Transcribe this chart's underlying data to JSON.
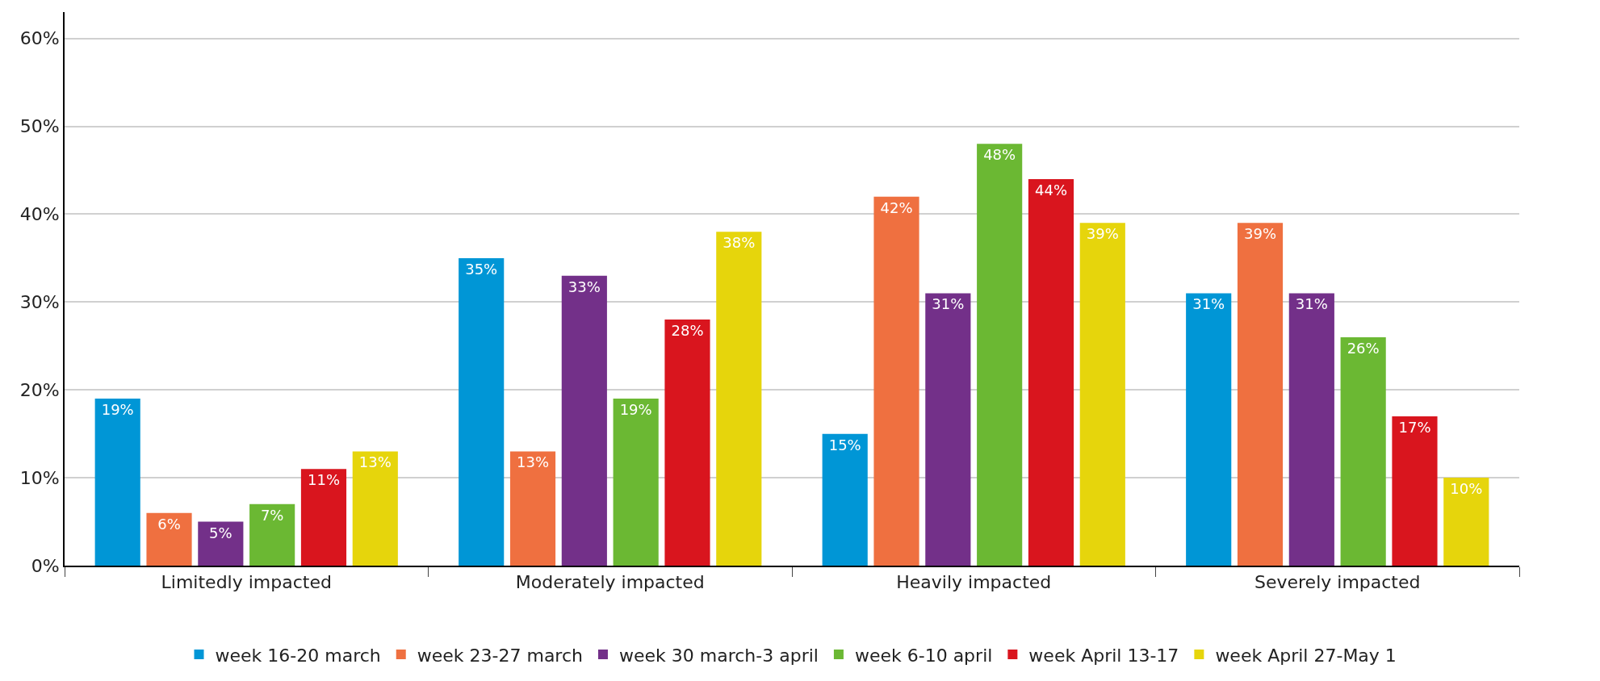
{
  "chart_data": {
    "type": "bar",
    "categories": [
      "Limitedly impacted",
      "Moderately impacted",
      "Heavily impacted",
      "Severely impacted"
    ],
    "series": [
      {
        "name": "week 16-20 march",
        "color": "#0096d6",
        "values": [
          19,
          35,
          15,
          31
        ],
        "value_labels": [
          "19%",
          "35%",
          "15%",
          "31%"
        ]
      },
      {
        "name": "week 23-27 march",
        "color": "#ef7040",
        "values": [
          6,
          13,
          42,
          39
        ],
        "value_labels": [
          "6%",
          "13%",
          "42%",
          "39%"
        ]
      },
      {
        "name": "week 30 march-3 april",
        "color": "#733089",
        "values": [
          5,
          33,
          31,
          31
        ],
        "value_labels": [
          "5%",
          "33%",
          "31%",
          "31%"
        ]
      },
      {
        "name": "week 6-10 april",
        "color": "#6bb833",
        "values": [
          7,
          19,
          48,
          26
        ],
        "value_labels": [
          "7%",
          "19%",
          "48%",
          "26%"
        ]
      },
      {
        "name": "week April 13-17",
        "color": "#d9151e",
        "values": [
          11,
          28,
          44,
          17
        ],
        "value_labels": [
          "11%",
          "28%",
          "44%",
          "17%"
        ]
      },
      {
        "name": "week April 27-May 1",
        "color": "#e6d50c",
        "values": [
          13,
          38,
          39,
          10
        ],
        "value_labels": [
          "13%",
          "38%",
          "39%",
          "10%"
        ]
      }
    ],
    "ylim": [
      0,
      63
    ],
    "yticks": [
      {
        "value": 0,
        "label": "0%"
      },
      {
        "value": 10,
        "label": "10%"
      },
      {
        "value": 20,
        "label": "20%"
      },
      {
        "value": 30,
        "label": "30%"
      },
      {
        "value": 40,
        "label": "40%"
      },
      {
        "value": 50,
        "label": "50%"
      },
      {
        "value": 60,
        "label": "60%"
      }
    ],
    "grid": "y",
    "legend": "bottom"
  }
}
